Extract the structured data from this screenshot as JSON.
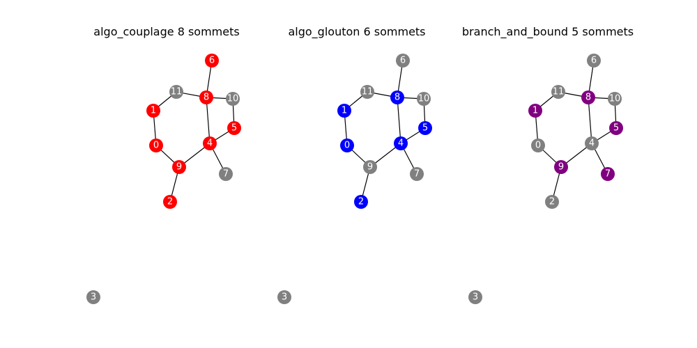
{
  "node_colors": {
    "uncovered": "#808080",
    "algo_couplage": "#ff0000",
    "algo_glouton": "#0000ff",
    "branch_and_bound": "#800080"
  },
  "edges": [
    [
      0,
      1
    ],
    [
      1,
      11
    ],
    [
      11,
      8
    ],
    [
      8,
      6
    ],
    [
      8,
      10
    ],
    [
      10,
      5
    ],
    [
      5,
      4
    ],
    [
      8,
      4
    ],
    [
      4,
      7
    ],
    [
      4,
      9
    ],
    [
      9,
      0
    ],
    [
      9,
      2
    ]
  ],
  "isolated_nodes": [
    3
  ],
  "panels": [
    {
      "id": "algo_couplage",
      "title": "algo_couplage 8 sommets",
      "cover": [
        0,
        1,
        2,
        4,
        5,
        6,
        8,
        9
      ]
    },
    {
      "id": "algo_glouton",
      "title": "algo_glouton 6 sommets",
      "cover": [
        0,
        1,
        2,
        4,
        5,
        8
      ]
    },
    {
      "id": "branch_and_bound",
      "title": "branch_and_bound 5 sommets",
      "cover": [
        1,
        5,
        7,
        8,
        9
      ]
    }
  ]
}
